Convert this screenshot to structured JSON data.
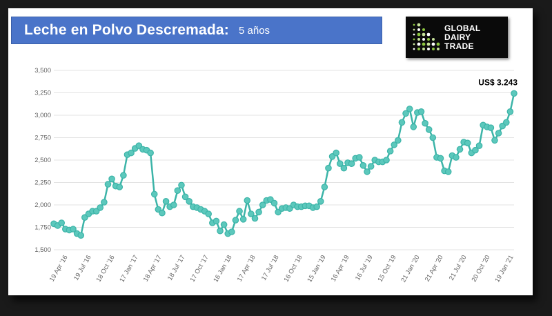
{
  "header": {
    "title": "Leche en Polvo Descremada:",
    "subtitle": "5 años"
  },
  "logo": {
    "line1": "GLOBAL",
    "line2": "DAIRY",
    "line3": "TRADE",
    "colors": [
      "#8dc63f",
      "#c7e29a",
      "#ffffff"
    ]
  },
  "chart_data": {
    "type": "line",
    "title": "Leche en Polvo Descremada: 5 años",
    "ylim": [
      1500,
      3500
    ],
    "y_ticks": [
      "1,500",
      "1,750",
      "2,000",
      "2,250",
      "2,500",
      "2,750",
      "3,000",
      "3,250",
      "3,500"
    ],
    "y_tick_values": [
      1500,
      1750,
      2000,
      2250,
      2500,
      2750,
      3000,
      3250,
      3500
    ],
    "x_ticks": [
      "19 Apr '16",
      "19 Jul '16",
      "18 Oct '16",
      "17 Jan '17",
      "18 Apr '17",
      "18 Jul '17",
      "17 Oct '17",
      "16 Jan '18",
      "17 Apr '18",
      "17 Jul '18",
      "16 Oct '18",
      "15 Jan '19",
      "16 Apr '19",
      "16 Jul '19",
      "15 Oct '19",
      "21 Jan '20",
      "21 Apr '20",
      "21 Jul '20",
      "20 Oct '20",
      "19 Jan '21"
    ],
    "line_color": "#3cb4a8",
    "marker_color": "#5cc8bc",
    "annotation": "US$ 3.243",
    "grid": true,
    "values": [
      1790,
      1770,
      1800,
      1730,
      1720,
      1730,
      1680,
      1660,
      1860,
      1900,
      1930,
      1930,
      1970,
      2030,
      2230,
      2290,
      2210,
      2200,
      2330,
      2560,
      2580,
      2630,
      2660,
      2620,
      2610,
      2580,
      2120,
      1950,
      1910,
      2040,
      1980,
      2000,
      2160,
      2220,
      2090,
      2040,
      1980,
      1970,
      1950,
      1930,
      1900,
      1800,
      1820,
      1710,
      1780,
      1680,
      1700,
      1830,
      1930,
      1840,
      2050,
      1900,
      1850,
      1920,
      2000,
      2050,
      2060,
      2020,
      1920,
      1960,
      1970,
      1960,
      2000,
      1980,
      1980,
      1990,
      1990,
      1970,
      1980,
      2040,
      2200,
      2410,
      2540,
      2580,
      2460,
      2410,
      2470,
      2460,
      2520,
      2530,
      2440,
      2370,
      2430,
      2500,
      2480,
      2480,
      2500,
      2600,
      2670,
      2720,
      2920,
      3020,
      3070,
      2870,
      3030,
      3040,
      2910,
      2840,
      2750,
      2530,
      2520,
      2380,
      2370,
      2550,
      2530,
      2620,
      2700,
      2690,
      2580,
      2610,
      2660,
      2890,
      2870,
      2860,
      2720,
      2800,
      2880,
      2920,
      3040,
      3243
    ]
  }
}
